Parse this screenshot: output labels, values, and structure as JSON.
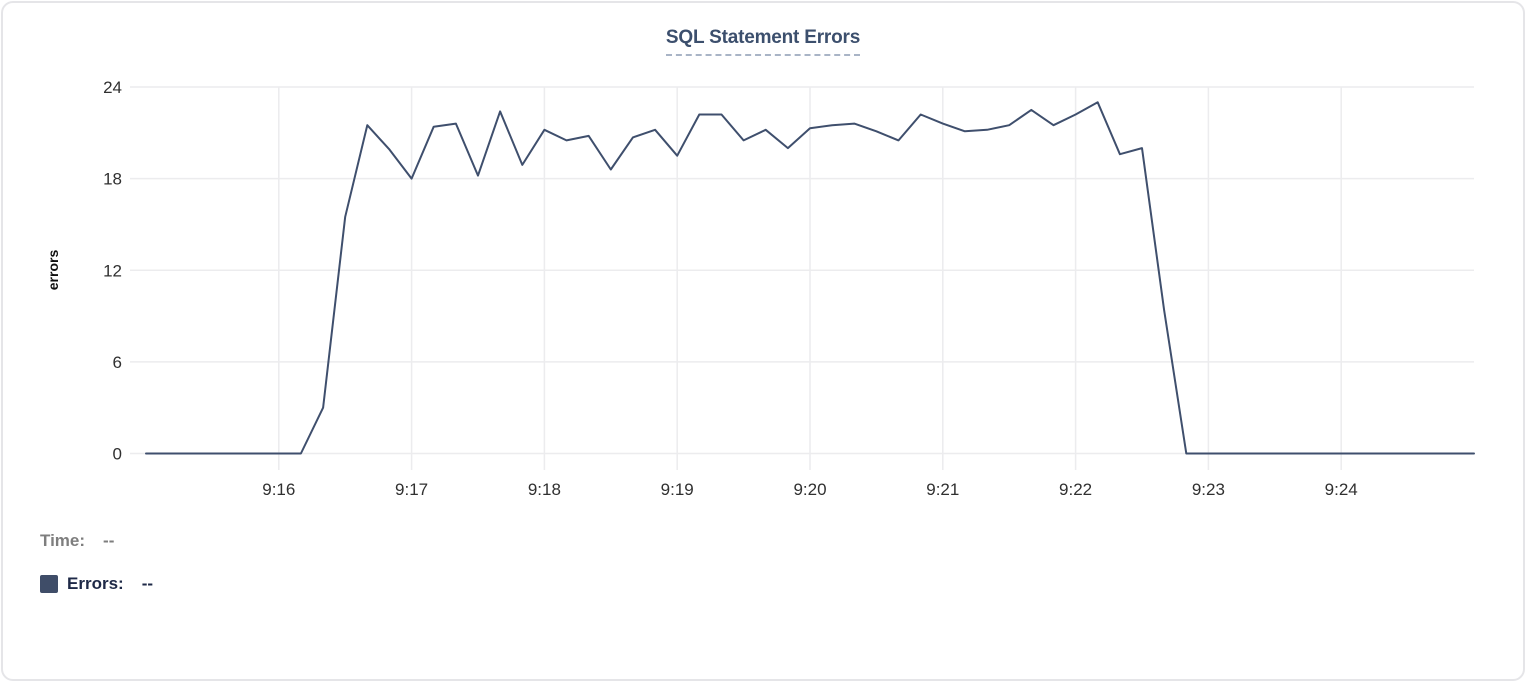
{
  "chart_data": {
    "type": "line",
    "title": "SQL Statement Errors",
    "xlabel": "",
    "ylabel": "errors",
    "series_name": "Errors",
    "x": [
      "9:15:00",
      "9:15:10",
      "9:15:20",
      "9:15:30",
      "9:15:40",
      "9:15:50",
      "9:16:00",
      "9:16:10",
      "9:16:20",
      "9:16:30",
      "9:16:40",
      "9:16:50",
      "9:17:00",
      "9:17:10",
      "9:17:20",
      "9:17:30",
      "9:17:40",
      "9:17:50",
      "9:18:00",
      "9:18:10",
      "9:18:20",
      "9:18:30",
      "9:18:40",
      "9:18:50",
      "9:19:00",
      "9:19:10",
      "9:19:20",
      "9:19:30",
      "9:19:40",
      "9:19:50",
      "9:20:00",
      "9:20:10",
      "9:20:20",
      "9:20:30",
      "9:20:40",
      "9:20:50",
      "9:21:00",
      "9:21:10",
      "9:21:20",
      "9:21:30",
      "9:21:40",
      "9:21:50",
      "9:22:00",
      "9:22:10",
      "9:22:20",
      "9:22:30",
      "9:22:40",
      "9:22:50",
      "9:23:00",
      "9:23:10",
      "9:23:20",
      "9:23:30",
      "9:23:40",
      "9:23:50",
      "9:24:00",
      "9:24:10",
      "9:24:20",
      "9:24:30",
      "9:24:40",
      "9:24:50",
      "9:25:00"
    ],
    "values": [
      0,
      0,
      0,
      0,
      0,
      0,
      0,
      0,
      3,
      15.5,
      21.5,
      19.9,
      18,
      21.4,
      21.6,
      18.2,
      22.4,
      18.9,
      21.2,
      20.5,
      20.8,
      18.6,
      20.7,
      21.2,
      19.5,
      22.2,
      22.2,
      20.5,
      21.2,
      20,
      21.3,
      21.5,
      21.6,
      21.1,
      20.5,
      22.2,
      21.6,
      21.1,
      21.2,
      21.5,
      22.5,
      21.5,
      22.2,
      23,
      19.6,
      20,
      9.4,
      0,
      0,
      0,
      0,
      0,
      0,
      0,
      0,
      0,
      0,
      0,
      0,
      0,
      0
    ],
    "ylim": [
      0,
      24
    ],
    "y_ticks": [
      0,
      6,
      12,
      18,
      24
    ],
    "x_ticks": [
      {
        "label": "9:16",
        "index": 6
      },
      {
        "label": "9:17",
        "index": 12
      },
      {
        "label": "9:18",
        "index": 18
      },
      {
        "label": "9:19",
        "index": 24
      },
      {
        "label": "9:20",
        "index": 30
      },
      {
        "label": "9:21",
        "index": 36
      },
      {
        "label": "9:22",
        "index": 42
      },
      {
        "label": "9:23",
        "index": 48
      },
      {
        "label": "9:24",
        "index": 54
      }
    ],
    "grid": true,
    "legend_position": "bottom-left",
    "line_color": "#3f4f6d",
    "grid_color": "#ececee"
  },
  "tooltip": {
    "time_label": "Time:",
    "time_value": "--",
    "errors_label": "Errors:",
    "errors_value": "--"
  },
  "colors": {
    "title": "#3c4f6d",
    "title_underline": "#a9b4c6",
    "legend_swatch": "#3f4d68",
    "time_text": "#7e7e7e",
    "errors_text": "#1e2947",
    "tick_text": "#303030",
    "card_border": "#e5e5e8"
  }
}
